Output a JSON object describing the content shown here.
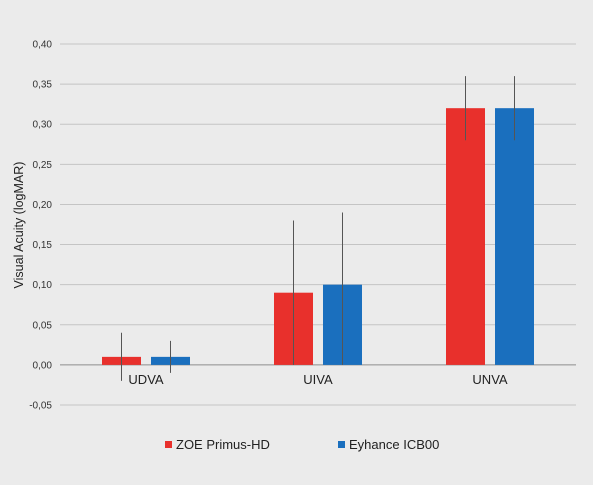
{
  "chart_data": {
    "type": "bar",
    "title": "",
    "xlabel": "",
    "ylabel": "Visual Acuity (logMAR)",
    "categories": [
      "UDVA",
      "UIVA",
      "UNVA"
    ],
    "ylim": [
      -0.05,
      0.4
    ],
    "yticks": [
      "-0,05",
      "0,00",
      "0,05",
      "0,10",
      "0,15",
      "0,20",
      "0,25",
      "0,30",
      "0,35",
      "0,40"
    ],
    "ytick_values": [
      -0.05,
      0.0,
      0.05,
      0.1,
      0.15,
      0.2,
      0.25,
      0.3,
      0.35,
      0.4
    ],
    "grid": true,
    "legend_position": "bottom",
    "series": [
      {
        "name": "ZOE Primus-HD",
        "color": "#e8302c",
        "values": [
          0.01,
          0.09,
          0.32
        ],
        "error_low": [
          -0.02,
          0.0,
          0.28
        ],
        "error_high": [
          0.04,
          0.18,
          0.36
        ]
      },
      {
        "name": "Eyhance ICB00",
        "color": "#1a6fbe",
        "values": [
          0.01,
          0.1,
          0.32
        ],
        "error_low": [
          -0.01,
          0.0,
          0.28
        ],
        "error_high": [
          0.03,
          0.19,
          0.36
        ]
      }
    ]
  }
}
